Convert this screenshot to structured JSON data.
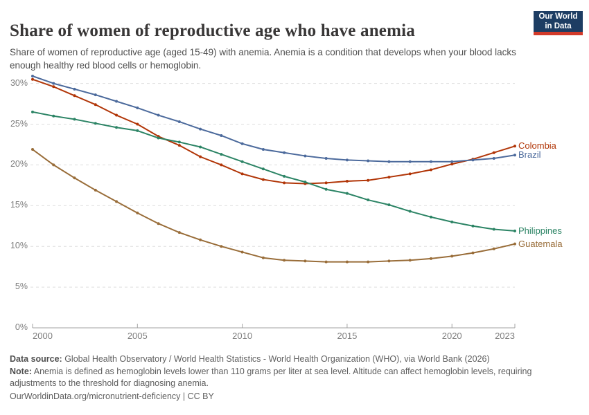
{
  "header": {
    "title": "Share of women of reproductive age who have anemia",
    "subtitle": "Share of women of reproductive age (aged 15-49) with anemia. Anemia is a condition that develops when your blood lacks enough healthy red blood cells or hemoglobin.",
    "logo": {
      "line1": "Our World",
      "line2": "in Data",
      "bg_color": "#1d3d63",
      "stripe_color": "#d23a2a"
    }
  },
  "chart_data": {
    "type": "line",
    "title": "Share of women of reproductive age who have anemia",
    "xlabel": "",
    "ylabel": "",
    "ylim": [
      0,
      32
    ],
    "y_ticks": [
      0,
      5,
      10,
      15,
      20,
      25,
      30
    ],
    "y_tick_suffix": "%",
    "x_ticks": [
      2000,
      2005,
      2010,
      2015,
      2020,
      2023
    ],
    "grid": "horizontal-dashed",
    "legend_position": "right-end-labels",
    "x": [
      2000,
      2001,
      2002,
      2003,
      2004,
      2005,
      2006,
      2007,
      2008,
      2009,
      2010,
      2011,
      2012,
      2013,
      2014,
      2015,
      2016,
      2017,
      2018,
      2019,
      2020,
      2021,
      2022,
      2023
    ],
    "series": [
      {
        "name": "Colombia",
        "color": "#b13507",
        "values": [
          30.5,
          29.6,
          28.5,
          27.4,
          26.1,
          25.0,
          23.5,
          22.4,
          21.0,
          20.0,
          18.9,
          18.2,
          17.8,
          17.7,
          17.8,
          18.0,
          18.1,
          18.5,
          18.9,
          19.4,
          20.1,
          20.7,
          21.5,
          22.3
        ]
      },
      {
        "name": "Brazil",
        "color": "#4c6a9c",
        "values": [
          30.9,
          30.0,
          29.3,
          28.6,
          27.8,
          27.0,
          26.1,
          25.3,
          24.4,
          23.6,
          22.6,
          21.9,
          21.5,
          21.1,
          20.8,
          20.6,
          20.5,
          20.4,
          20.4,
          20.4,
          20.4,
          20.6,
          20.8,
          21.2
        ]
      },
      {
        "name": "Philippines",
        "color": "#2c8465",
        "values": [
          26.5,
          26.0,
          25.6,
          25.1,
          24.6,
          24.2,
          23.3,
          22.8,
          22.2,
          21.3,
          20.4,
          19.5,
          18.6,
          17.9,
          17.0,
          16.5,
          15.7,
          15.1,
          14.3,
          13.6,
          13.0,
          12.5,
          12.1,
          11.9
        ]
      },
      {
        "name": "Guatemala",
        "color": "#996d39",
        "values": [
          21.9,
          20.0,
          18.4,
          16.9,
          15.5,
          14.1,
          12.8,
          11.7,
          10.8,
          10.0,
          9.3,
          8.6,
          8.3,
          8.2,
          8.1,
          8.1,
          8.1,
          8.2,
          8.3,
          8.5,
          8.8,
          9.2,
          9.7,
          10.3
        ]
      }
    ]
  },
  "footer": {
    "datasource_label": "Data source:",
    "datasource_text": " Global Health Observatory / World Health Statistics - World Health Organization (WHO), via World Bank (2026)",
    "note_label": "Note:",
    "note_text": " Anemia is defined as hemoglobin levels lower than 110 grams per liter at sea level. Altitude can affect hemoglobin levels, requiring adjustments to the threshold for diagnosing anemia.",
    "link_text": "OurWorldinData.org/micronutrient-deficiency | CC BY"
  }
}
